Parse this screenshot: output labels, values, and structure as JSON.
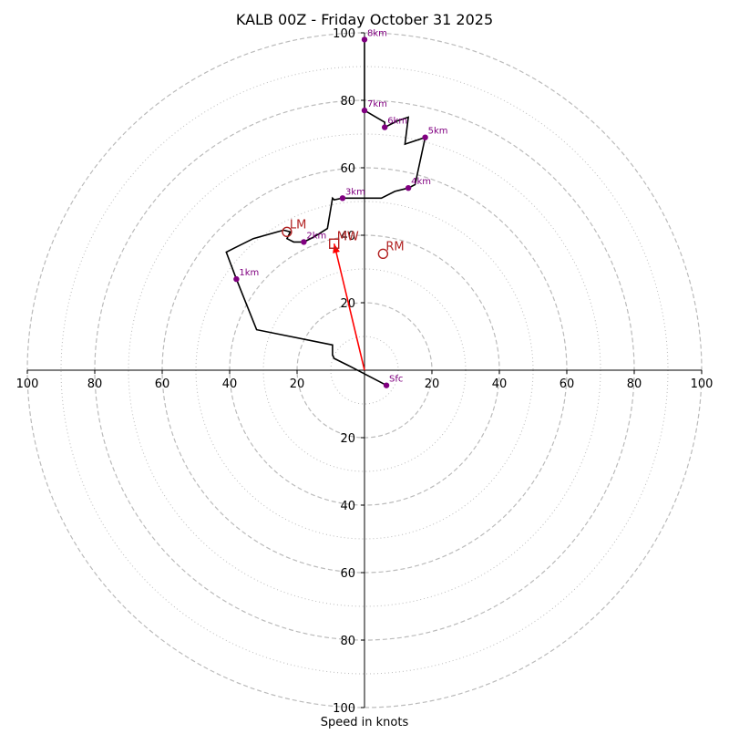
{
  "chart_data": {
    "type": "hodograph",
    "title": "KALB 00Z - Friday October 31 2025",
    "xlabel": "Speed in knots",
    "range_max": 100,
    "major_rings": [
      20,
      40,
      60,
      80,
      100
    ],
    "minor_rings": [
      10,
      30,
      50,
      70,
      90
    ],
    "ticks": [
      100,
      80,
      60,
      40,
      20
    ],
    "hodograph_trace": [
      [
        6.5,
        -4.5
      ],
      [
        -4,
        1
      ],
      [
        -6,
        2
      ],
      [
        -9,
        3.5
      ],
      [
        -9.5,
        4.5
      ],
      [
        -9.5,
        7.5
      ],
      [
        -32,
        12
      ],
      [
        -38,
        27
      ],
      [
        -41,
        35
      ],
      [
        -33,
        39
      ],
      [
        -24,
        41.5
      ],
      [
        -22,
        41
      ],
      [
        -23,
        39
      ],
      [
        -21,
        38
      ],
      [
        -18,
        38
      ],
      [
        -15,
        39.5
      ],
      [
        -11,
        42
      ],
      [
        -9.5,
        51
      ],
      [
        -9,
        50.5
      ],
      [
        -6.5,
        51
      ],
      [
        5,
        51
      ],
      [
        9,
        53
      ],
      [
        13,
        54
      ],
      [
        15,
        55
      ],
      [
        18,
        69
      ],
      [
        12,
        67
      ],
      [
        13,
        75
      ],
      [
        10,
        74
      ],
      [
        6,
        72
      ],
      [
        6,
        73.5
      ],
      [
        0,
        77
      ],
      [
        0,
        98
      ]
    ],
    "height_markers": [
      {
        "label": "Sfc",
        "u": 6.5,
        "v": -4.5
      },
      {
        "label": "1km",
        "u": -38,
        "v": 27
      },
      {
        "label": "2km",
        "u": -18,
        "v": 38
      },
      {
        "label": "3km",
        "u": -6.5,
        "v": 51
      },
      {
        "label": "4km",
        "u": 13,
        "v": 54
      },
      {
        "label": "5km",
        "u": 18,
        "v": 69
      },
      {
        "label": "6km",
        "u": 6,
        "v": 72
      },
      {
        "label": "7km",
        "u": 0,
        "v": 77
      },
      {
        "label": "8km",
        "u": 0,
        "v": 98
      }
    ],
    "storm_motion": [
      {
        "label": "LM",
        "u": -23,
        "v": 41,
        "marker": "circle"
      },
      {
        "label": "MW",
        "u": -9,
        "v": 37.5,
        "marker": "square"
      },
      {
        "label": "RM",
        "u": 5.5,
        "v": 34.5,
        "marker": "circle"
      }
    ],
    "mean_wind_vector": {
      "u": -9,
      "v": 37.5
    },
    "colors": {
      "trace": "#000000",
      "marker": "#800080",
      "storm_motion": "#b22222",
      "vector": "#ff0000",
      "grid": "#bbbbbb",
      "axis": "#000000"
    }
  }
}
